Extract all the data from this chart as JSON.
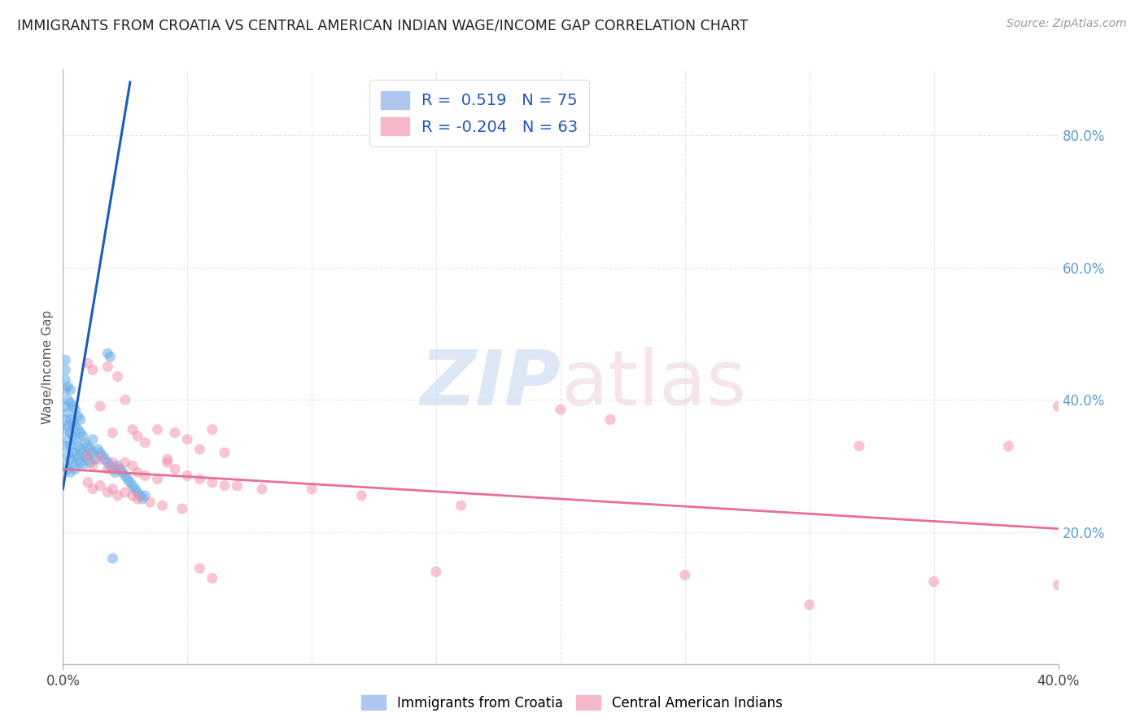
{
  "title": "IMMIGRANTS FROM CROATIA VS CENTRAL AMERICAN INDIAN WAGE/INCOME GAP CORRELATION CHART",
  "source": "Source: ZipAtlas.com",
  "ylabel": "Wage/Income Gap",
  "right_yticks": [
    "80.0%",
    "60.0%",
    "40.0%",
    "20.0%"
  ],
  "right_ytick_vals": [
    0.8,
    0.6,
    0.4,
    0.2
  ],
  "xlim": [
    0.0,
    0.4
  ],
  "ylim": [
    0.0,
    0.9
  ],
  "blue_color": "#6aaee8",
  "pink_color": "#f08ca8",
  "blue_line_color": "#1a5cbf",
  "pink_line_color": "#e87090",
  "grid_color": "#e8e8e8",
  "background_color": "#ffffff",
  "right_axis_color": "#5b9bd5",
  "blue_points": [
    [
      0.001,
      0.3
    ],
    [
      0.001,
      0.33
    ],
    [
      0.001,
      0.355
    ],
    [
      0.001,
      0.37
    ],
    [
      0.001,
      0.39
    ],
    [
      0.001,
      0.415
    ],
    [
      0.001,
      0.43
    ],
    [
      0.001,
      0.445
    ],
    [
      0.001,
      0.46
    ],
    [
      0.002,
      0.295
    ],
    [
      0.002,
      0.315
    ],
    [
      0.002,
      0.34
    ],
    [
      0.002,
      0.36
    ],
    [
      0.002,
      0.38
    ],
    [
      0.002,
      0.4
    ],
    [
      0.002,
      0.42
    ],
    [
      0.003,
      0.29
    ],
    [
      0.003,
      0.31
    ],
    [
      0.003,
      0.33
    ],
    [
      0.003,
      0.35
    ],
    [
      0.003,
      0.37
    ],
    [
      0.003,
      0.395
    ],
    [
      0.003,
      0.415
    ],
    [
      0.004,
      0.3
    ],
    [
      0.004,
      0.32
    ],
    [
      0.004,
      0.345
    ],
    [
      0.004,
      0.365
    ],
    [
      0.004,
      0.39
    ],
    [
      0.005,
      0.295
    ],
    [
      0.005,
      0.315
    ],
    [
      0.005,
      0.34
    ],
    [
      0.005,
      0.36
    ],
    [
      0.005,
      0.385
    ],
    [
      0.006,
      0.31
    ],
    [
      0.006,
      0.33
    ],
    [
      0.006,
      0.355
    ],
    [
      0.006,
      0.375
    ],
    [
      0.007,
      0.305
    ],
    [
      0.007,
      0.325
    ],
    [
      0.007,
      0.35
    ],
    [
      0.007,
      0.37
    ],
    [
      0.008,
      0.3
    ],
    [
      0.008,
      0.32
    ],
    [
      0.008,
      0.345
    ],
    [
      0.009,
      0.315
    ],
    [
      0.009,
      0.335
    ],
    [
      0.01,
      0.31
    ],
    [
      0.01,
      0.33
    ],
    [
      0.011,
      0.305
    ],
    [
      0.011,
      0.325
    ],
    [
      0.012,
      0.32
    ],
    [
      0.012,
      0.34
    ],
    [
      0.013,
      0.31
    ],
    [
      0.014,
      0.325
    ],
    [
      0.015,
      0.32
    ],
    [
      0.016,
      0.315
    ],
    [
      0.017,
      0.31
    ],
    [
      0.018,
      0.305
    ],
    [
      0.018,
      0.47
    ],
    [
      0.019,
      0.3
    ],
    [
      0.019,
      0.465
    ],
    [
      0.02,
      0.295
    ],
    [
      0.02,
      0.16
    ],
    [
      0.021,
      0.29
    ],
    [
      0.022,
      0.3
    ],
    [
      0.023,
      0.295
    ],
    [
      0.024,
      0.29
    ],
    [
      0.025,
      0.285
    ],
    [
      0.026,
      0.28
    ],
    [
      0.027,
      0.275
    ],
    [
      0.028,
      0.27
    ],
    [
      0.029,
      0.265
    ],
    [
      0.03,
      0.26
    ],
    [
      0.031,
      0.255
    ],
    [
      0.032,
      0.25
    ],
    [
      0.033,
      0.255
    ]
  ],
  "pink_points": [
    [
      0.01,
      0.455
    ],
    [
      0.012,
      0.445
    ],
    [
      0.015,
      0.39
    ],
    [
      0.018,
      0.45
    ],
    [
      0.02,
      0.35
    ],
    [
      0.022,
      0.435
    ],
    [
      0.025,
      0.4
    ],
    [
      0.028,
      0.355
    ],
    [
      0.03,
      0.345
    ],
    [
      0.033,
      0.335
    ],
    [
      0.038,
      0.355
    ],
    [
      0.042,
      0.31
    ],
    [
      0.045,
      0.35
    ],
    [
      0.05,
      0.34
    ],
    [
      0.055,
      0.325
    ],
    [
      0.06,
      0.355
    ],
    [
      0.065,
      0.32
    ],
    [
      0.01,
      0.315
    ],
    [
      0.012,
      0.3
    ],
    [
      0.015,
      0.31
    ],
    [
      0.018,
      0.295
    ],
    [
      0.02,
      0.305
    ],
    [
      0.022,
      0.295
    ],
    [
      0.025,
      0.305
    ],
    [
      0.028,
      0.3
    ],
    [
      0.03,
      0.29
    ],
    [
      0.033,
      0.285
    ],
    [
      0.038,
      0.28
    ],
    [
      0.042,
      0.305
    ],
    [
      0.045,
      0.295
    ],
    [
      0.05,
      0.285
    ],
    [
      0.055,
      0.28
    ],
    [
      0.06,
      0.275
    ],
    [
      0.065,
      0.27
    ],
    [
      0.07,
      0.27
    ],
    [
      0.08,
      0.265
    ],
    [
      0.01,
      0.275
    ],
    [
      0.012,
      0.265
    ],
    [
      0.015,
      0.27
    ],
    [
      0.018,
      0.26
    ],
    [
      0.02,
      0.265
    ],
    [
      0.022,
      0.255
    ],
    [
      0.025,
      0.26
    ],
    [
      0.028,
      0.255
    ],
    [
      0.03,
      0.25
    ],
    [
      0.035,
      0.245
    ],
    [
      0.04,
      0.24
    ],
    [
      0.048,
      0.235
    ],
    [
      0.055,
      0.145
    ],
    [
      0.06,
      0.13
    ],
    [
      0.1,
      0.265
    ],
    [
      0.12,
      0.255
    ],
    [
      0.15,
      0.14
    ],
    [
      0.16,
      0.24
    ],
    [
      0.2,
      0.385
    ],
    [
      0.22,
      0.37
    ],
    [
      0.25,
      0.135
    ],
    [
      0.3,
      0.09
    ],
    [
      0.32,
      0.33
    ],
    [
      0.35,
      0.125
    ],
    [
      0.38,
      0.33
    ],
    [
      0.4,
      0.12
    ],
    [
      0.4,
      0.39
    ]
  ],
  "blue_line_x": [
    0.0,
    0.027
  ],
  "blue_line_y": [
    0.265,
    0.88
  ],
  "pink_line_x": [
    0.0,
    0.4
  ],
  "pink_line_y": [
    0.295,
    0.205
  ]
}
